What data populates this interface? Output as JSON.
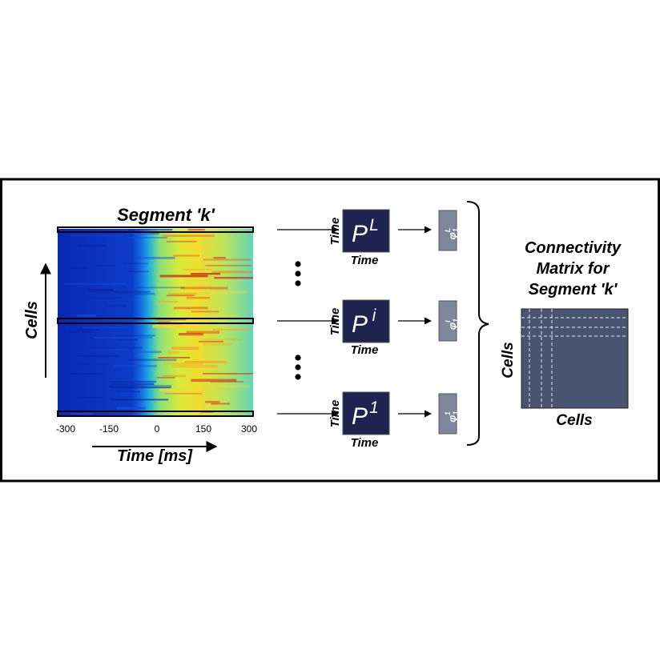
{
  "heatmap": {
    "title": "Segment 'k'",
    "ylabel": "Cells",
    "xlabel": "Time [ms]",
    "xticks": [
      "-300",
      "-150",
      "0",
      "150",
      "300"
    ]
  },
  "rows": [
    {
      "base": "P",
      "sup": "L",
      "ylabel": "Time",
      "xlabel": "Time",
      "phi": "φ",
      "phi_sub": "1",
      "phi_sup": "L"
    },
    {
      "base": "P",
      "sup": "i",
      "ylabel": "Time",
      "xlabel": "Time",
      "phi": "φ",
      "phi_sub": "1",
      "phi_sup": "i"
    },
    {
      "base": "P",
      "sup": "1",
      "ylabel": "Time",
      "xlabel": "Time",
      "phi": "φ",
      "phi_sub": "1",
      "phi_sup": "1"
    }
  ],
  "connectivity": {
    "title_lines": [
      "Connectivity",
      "Matrix for",
      "Segment 'k'"
    ],
    "ylabel": "Cells",
    "xlabel": "Cells"
  },
  "colors": {
    "matrix_dark": "#1f2350",
    "phi_box": "#7e879d",
    "connectivity_fill": "#4a5470",
    "frame": "#000000"
  }
}
